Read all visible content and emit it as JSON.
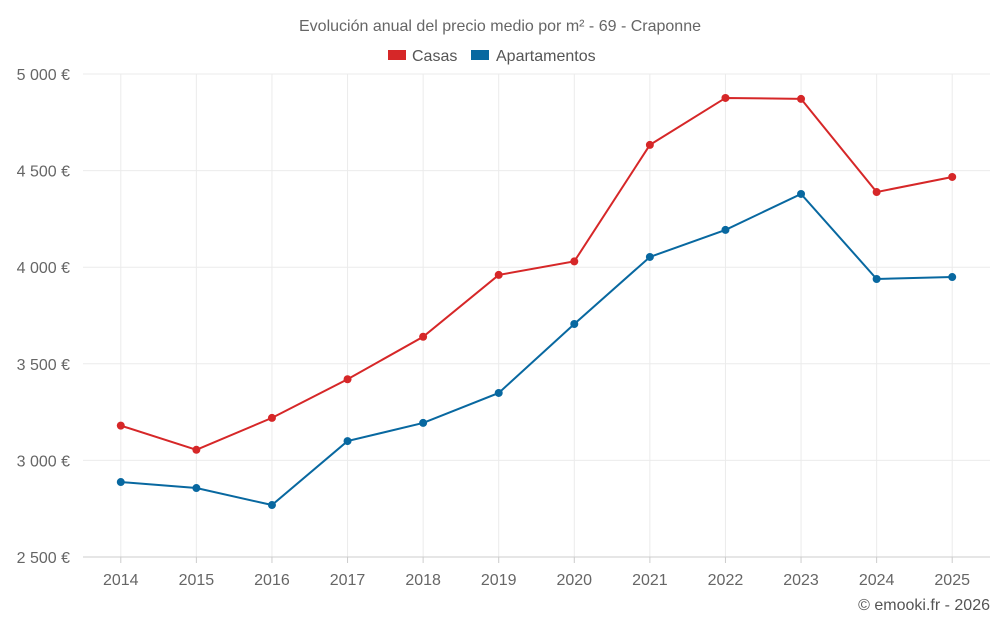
{
  "chart_data": {
    "type": "line",
    "title": "Evolución anual del precio medio por m² - 69 - Craponne",
    "xlabel": "",
    "ylabel": "",
    "categories": [
      "2014",
      "2015",
      "2016",
      "2017",
      "2018",
      "2019",
      "2020",
      "2021",
      "2022",
      "2023",
      "2024",
      "2025"
    ],
    "ylim": [
      2500,
      5000
    ],
    "yticks": [
      2500,
      3000,
      3500,
      4000,
      4500,
      5000
    ],
    "ytick_labels": [
      "2 500 €",
      "3 000 €",
      "3 500 €",
      "4 000 €",
      "4 500 €",
      "5 000 €"
    ],
    "grid": true,
    "legend_position": "top-center",
    "series": [
      {
        "name": "Casas",
        "color": "#d62728",
        "values": [
          3180,
          3055,
          3220,
          3420,
          3640,
          3960,
          4030,
          4633,
          4876,
          4871,
          4389,
          4467
        ]
      },
      {
        "name": "Apartamentos",
        "color": "#0868a0",
        "values": [
          2888,
          2857,
          2769,
          3100,
          3194,
          3349,
          3706,
          4053,
          4193,
          4379,
          3939,
          3949
        ]
      }
    ],
    "credit": "© emooki.fr - 2026"
  }
}
